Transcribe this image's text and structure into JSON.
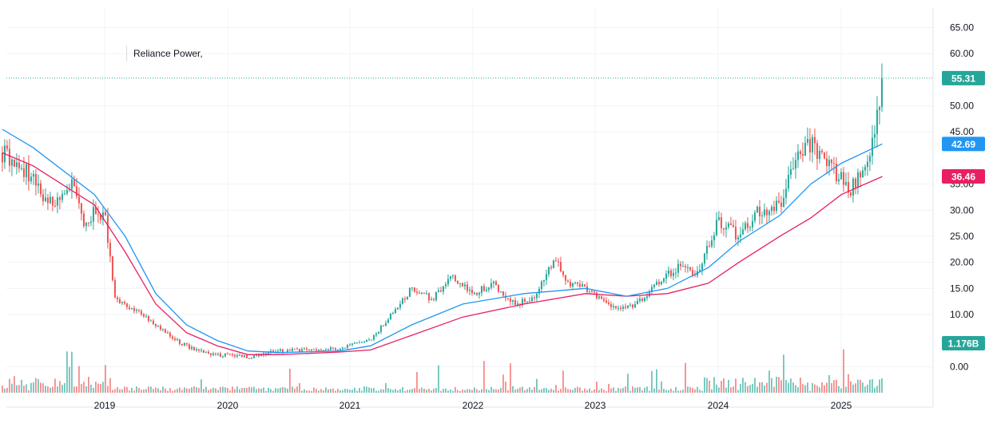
{
  "chart_data": {
    "type": "candlestick",
    "symbol_label": "Reliance Power,",
    "x_tick_labels": [
      "2019",
      "2020",
      "2021",
      "2022",
      "2023",
      "2024",
      "2025"
    ],
    "y_tick_labels": [
      "65.00",
      "60.00",
      "50.00",
      "45.00",
      "35.00",
      "30.00",
      "25.00",
      "20.00",
      "15.00",
      "10.00",
      "0.00"
    ],
    "ylim": [
      -5,
      66
    ],
    "badges": {
      "last_price": "55.31",
      "ma_fast": "42.69",
      "ma_slow": "36.46",
      "volume": "1.176B"
    },
    "colors": {
      "up": "#26a69a",
      "down": "#ef5350",
      "ma_fast": "#2196f3",
      "ma_slow": "#e91e63",
      "grid": "#f0f3fa",
      "last_price_line": "#26a69a",
      "volume_up": "#26a69a",
      "volume_down": "#ef5350"
    },
    "price_path": [
      [
        "2018-03",
        41
      ],
      [
        "2018-05",
        38
      ],
      [
        "2018-07",
        33
      ],
      [
        "2018-08",
        31
      ],
      [
        "2018-10",
        36
      ],
      [
        "2018-11",
        27
      ],
      [
        "2018-12",
        30
      ],
      [
        "2019-01",
        29
      ],
      [
        "2019-02",
        13
      ],
      [
        "2019-04",
        11
      ],
      [
        "2019-06",
        8
      ],
      [
        "2019-08",
        5
      ],
      [
        "2019-10",
        3
      ],
      [
        "2019-12",
        2.3
      ],
      [
        "2020-02",
        2.2
      ],
      [
        "2020-03",
        1.8
      ],
      [
        "2020-06",
        3
      ],
      [
        "2020-09",
        3.2
      ],
      [
        "2020-12",
        3.5
      ],
      [
        "2021-03",
        5
      ],
      [
        "2021-05",
        10
      ],
      [
        "2021-07",
        15
      ],
      [
        "2021-09",
        13
      ],
      [
        "2021-11",
        17
      ],
      [
        "2022-01",
        14
      ],
      [
        "2022-03",
        16
      ],
      [
        "2022-05",
        12
      ],
      [
        "2022-07",
        13
      ],
      [
        "2022-09",
        21
      ],
      [
        "2022-10",
        16
      ],
      [
        "2022-12",
        15
      ],
      [
        "2023-03",
        11
      ],
      [
        "2023-05",
        12
      ],
      [
        "2023-07",
        16
      ],
      [
        "2023-09",
        19
      ],
      [
        "2023-11",
        18
      ],
      [
        "2024-01",
        28
      ],
      [
        "2024-03",
        25
      ],
      [
        "2024-05",
        30
      ],
      [
        "2024-07",
        31
      ],
      [
        "2024-09",
        42
      ],
      [
        "2024-10",
        43
      ],
      [
        "2024-12",
        38
      ],
      [
        "2025-02",
        34
      ],
      [
        "2025-04",
        42
      ],
      [
        "2025-05",
        55.31
      ]
    ],
    "ma_fast_path": [
      [
        "2018-03",
        45.5
      ],
      [
        "2018-06",
        42
      ],
      [
        "2018-12",
        33
      ],
      [
        "2019-03",
        25
      ],
      [
        "2019-06",
        14
      ],
      [
        "2019-09",
        8
      ],
      [
        "2019-12",
        5
      ],
      [
        "2020-03",
        3
      ],
      [
        "2020-06",
        2.7
      ],
      [
        "2020-12",
        3
      ],
      [
        "2021-03",
        4
      ],
      [
        "2021-07",
        8
      ],
      [
        "2021-12",
        12
      ],
      [
        "2022-06",
        14
      ],
      [
        "2022-12",
        15
      ],
      [
        "2023-04",
        13.5
      ],
      [
        "2023-08",
        15
      ],
      [
        "2023-12",
        19
      ],
      [
        "2024-03",
        24
      ],
      [
        "2024-07",
        29
      ],
      [
        "2024-10",
        35
      ],
      [
        "2025-01",
        39
      ],
      [
        "2025-05",
        42.69
      ]
    ],
    "ma_slow_path": [
      [
        "2018-03",
        41
      ],
      [
        "2018-06",
        38.5
      ],
      [
        "2018-12",
        31
      ],
      [
        "2019-03",
        22
      ],
      [
        "2019-06",
        12
      ],
      [
        "2019-09",
        6.5
      ],
      [
        "2019-12",
        4
      ],
      [
        "2020-03",
        2.3
      ],
      [
        "2020-06",
        2.3
      ],
      [
        "2020-12",
        2.8
      ],
      [
        "2021-03",
        3.2
      ],
      [
        "2021-07",
        6
      ],
      [
        "2021-12",
        9.5
      ],
      [
        "2022-06",
        12
      ],
      [
        "2022-12",
        14
      ],
      [
        "2023-04",
        13.5
      ],
      [
        "2023-08",
        14
      ],
      [
        "2023-12",
        16
      ],
      [
        "2024-03",
        20
      ],
      [
        "2024-07",
        25
      ],
      [
        "2024-10",
        28.5
      ],
      [
        "2025-01",
        33
      ],
      [
        "2025-05",
        36.46
      ]
    ]
  }
}
